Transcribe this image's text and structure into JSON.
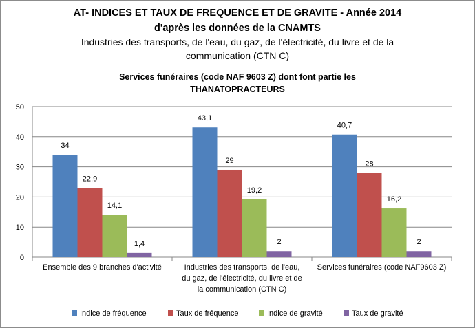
{
  "title_lines": [
    "AT- INDICES ET TAUX DE FREQUENCE ET DE GRAVITE - Année 2014",
    "d'après les données de la CNAMTS",
    "Industries des transports, de l'eau, du gaz, de l'électricité, du livre et de la",
    "communication  (CTN C)"
  ],
  "subtitle_lines": [
    "Services funéraires (code NAF 9603  Z) dont font partie les",
    "THANATOPRACTEURS"
  ],
  "chart_data": {
    "type": "bar",
    "categories": [
      [
        "Ensemble des 9 branches d'activité"
      ],
      [
        "Industries des transports, de l'eau,",
        "du gaz, de l'électricité, du livre et de",
        "la communication (CTN C)"
      ],
      [
        "Services funéraires (code NAF9603 Z)"
      ]
    ],
    "series": [
      {
        "name": "Indice de fréquence",
        "color": "#4f81bd",
        "values": [
          34,
          43.1,
          40.7
        ],
        "labels": [
          "34",
          "43,1",
          "40,7"
        ]
      },
      {
        "name": "Taux de fréquence",
        "color": "#c0504d",
        "values": [
          22.9,
          29,
          28
        ],
        "labels": [
          "22,9",
          "29",
          "28"
        ]
      },
      {
        "name": "Indice de gravité",
        "color": "#9bbb59",
        "values": [
          14.1,
          19.2,
          16.2
        ],
        "labels": [
          "14,1",
          "19,2",
          "16,2"
        ]
      },
      {
        "name": "Taux de gravité",
        "color": "#8064a2",
        "values": [
          1.4,
          2,
          2
        ],
        "labels": [
          "1,4",
          "2",
          "2"
        ]
      }
    ],
    "ylim": [
      0,
      50
    ],
    "yticks": [
      0,
      10,
      20,
      30,
      40,
      50
    ],
    "grid": true,
    "legend": "bottom"
  }
}
